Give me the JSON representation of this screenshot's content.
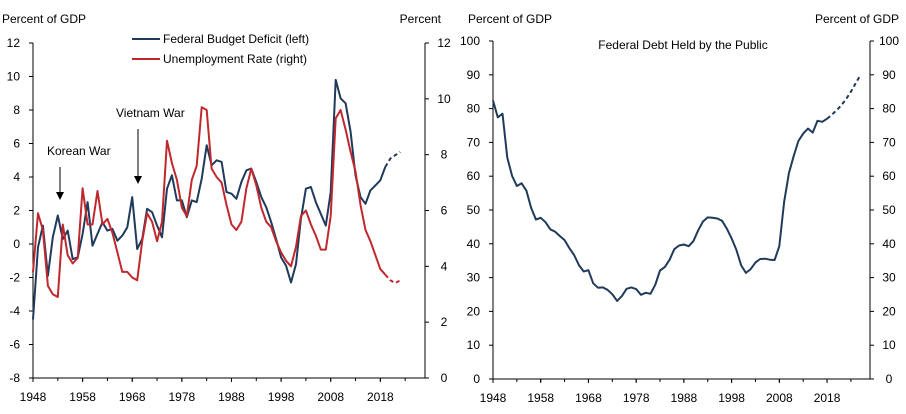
{
  "colors": {
    "deficit": "#1f3a5a",
    "unemployment": "#c0282d",
    "debt": "#1f3a5a",
    "axis": "#000000"
  },
  "chart_data": [
    {
      "type": "line",
      "title": "",
      "left_axis_title": "Percent of GDP",
      "right_axis_title": "Percent",
      "xlim": [
        1948,
        2027
      ],
      "ylim_left": [
        -8,
        12
      ],
      "ylim_right": [
        0,
        12
      ],
      "x_ticks": [
        "1948",
        "1958",
        "1968",
        "1978",
        "1988",
        "1998",
        "2008",
        "2018"
      ],
      "x_tick_values": [
        1948,
        1958,
        1968,
        1978,
        1988,
        1998,
        2008,
        2018
      ],
      "y_ticks_left": [
        "12",
        "10",
        "8",
        "6",
        "4",
        "2",
        "0",
        "-2",
        "-4",
        "-6",
        "-8"
      ],
      "y_tick_values_left": [
        12,
        10,
        8,
        6,
        4,
        2,
        0,
        -2,
        -4,
        -6,
        -8
      ],
      "y_ticks_right": [
        "12",
        "10",
        "8",
        "6",
        "4",
        "2",
        "0"
      ],
      "y_tick_values_right": [
        12,
        10,
        8,
        6,
        4,
        2,
        0
      ],
      "legend": [
        "Federal Budget Deficit (left)",
        "Unemployment Rate (right)"
      ],
      "annotations": [
        {
          "text": "Korean War",
          "x": 1953,
          "y": 1.7
        },
        {
          "text": "Vietnam War",
          "x": 1968,
          "y": 2.8
        }
      ],
      "series": [
        {
          "name": "Federal Budget Deficit (left)",
          "axis": "left",
          "x": [
            1948,
            1949,
            1950,
            1951,
            1952,
            1953,
            1954,
            1955,
            1956,
            1957,
            1958,
            1959,
            1960,
            1961,
            1962,
            1963,
            1964,
            1965,
            1966,
            1967,
            1968,
            1969,
            1970,
            1971,
            1972,
            1973,
            1974,
            1975,
            1976,
            1977,
            1978,
            1979,
            1980,
            1981,
            1982,
            1983,
            1984,
            1985,
            1986,
            1987,
            1988,
            1989,
            1990,
            1991,
            1992,
            1993,
            1994,
            1995,
            1996,
            1997,
            1998,
            1999,
            2000,
            2001,
            2002,
            2003,
            2004,
            2005,
            2006,
            2007,
            2008,
            2009,
            2010,
            2011,
            2012,
            2013,
            2014,
            2015,
            2016,
            2017,
            2018,
            2019
          ],
          "values": [
            -4.5,
            -0.2,
            1.1,
            -1.9,
            0.4,
            1.7,
            0.3,
            0.8,
            -0.9,
            -0.8,
            0.6,
            2.5,
            -0.1,
            0.6,
            1.3,
            0.8,
            0.9,
            0.2,
            0.5,
            1.0,
            2.8,
            -0.3,
            0.3,
            2.1,
            1.9,
            1.1,
            0.4,
            3.3,
            4.1,
            2.6,
            2.6,
            1.6,
            2.6,
            2.5,
            3.9,
            5.9,
            4.7,
            5.0,
            4.9,
            3.1,
            3.0,
            2.7,
            3.7,
            4.4,
            4.5,
            3.7,
            2.8,
            2.2,
            1.3,
            0.3,
            -0.8,
            -1.3,
            -2.3,
            -1.2,
            1.5,
            3.3,
            3.4,
            2.5,
            1.8,
            1.1,
            3.1,
            9.8,
            8.7,
            8.4,
            6.7,
            4.1,
            2.8,
            2.4,
            3.2,
            3.5,
            3.8,
            4.6
          ]
        },
        {
          "name": "Federal Budget Deficit (left) projection",
          "axis": "left",
          "style": "dashed",
          "x": [
            2019,
            2020,
            2021,
            2022
          ],
          "values": [
            4.6,
            5.1,
            5.3,
            5.5
          ]
        },
        {
          "name": "Unemployment Rate (right)",
          "axis": "right",
          "x": [
            1948,
            1949,
            1950,
            1951,
            1952,
            1953,
            1954,
            1955,
            1956,
            1957,
            1958,
            1959,
            1960,
            1961,
            1962,
            1963,
            1964,
            1965,
            1966,
            1967,
            1968,
            1969,
            1970,
            1971,
            1972,
            1973,
            1974,
            1975,
            1976,
            1977,
            1978,
            1979,
            1980,
            1981,
            1982,
            1983,
            1984,
            1985,
            1986,
            1987,
            1988,
            1989,
            1990,
            1991,
            1992,
            1993,
            1994,
            1995,
            1996,
            1997,
            1998,
            1999,
            2000,
            2001,
            2002,
            2003,
            2004,
            2005,
            2006,
            2007,
            2008,
            2009,
            2010,
            2011,
            2012,
            2013,
            2014,
            2015,
            2016,
            2017,
            2018,
            2019
          ],
          "values": [
            3.8,
            5.9,
            5.3,
            3.3,
            3.0,
            2.9,
            5.5,
            4.4,
            4.1,
            4.3,
            6.8,
            5.5,
            5.5,
            6.7,
            5.5,
            5.7,
            5.2,
            4.5,
            3.8,
            3.8,
            3.6,
            3.5,
            4.9,
            5.9,
            5.6,
            4.9,
            5.6,
            8.5,
            7.7,
            7.1,
            6.1,
            5.8,
            7.1,
            7.6,
            9.7,
            9.6,
            7.5,
            7.2,
            7.0,
            6.2,
            5.5,
            5.3,
            5.6,
            6.8,
            7.5,
            6.9,
            6.1,
            5.6,
            5.4,
            4.9,
            4.5,
            4.2,
            4.0,
            4.7,
            5.8,
            6.0,
            5.5,
            5.1,
            4.6,
            4.6,
            5.8,
            9.3,
            9.6,
            8.9,
            8.1,
            7.4,
            6.2,
            5.3,
            4.9,
            4.4,
            3.9,
            3.7
          ]
        },
        {
          "name": "Unemployment Rate (right) projection",
          "axis": "right",
          "style": "dashed",
          "x": [
            2019,
            2020,
            2021,
            2022
          ],
          "values": [
            3.7,
            3.5,
            3.4,
            3.5
          ]
        }
      ]
    },
    {
      "type": "line",
      "title": "Federal Debt Held by the Public",
      "left_axis_title": "Percent of GDP",
      "right_axis_title": "Percent of GDP",
      "xlim": [
        1948,
        2027
      ],
      "ylim_left": [
        0,
        100
      ],
      "ylim_right": [
        0,
        100
      ],
      "x_ticks": [
        "1948",
        "1958",
        "1968",
        "1978",
        "1988",
        "1998",
        "2008",
        "2018"
      ],
      "x_tick_values": [
        1948,
        1958,
        1968,
        1978,
        1988,
        1998,
        2008,
        2018
      ],
      "y_ticks_left": [
        "100",
        "90",
        "80",
        "70",
        "60",
        "50",
        "40",
        "30",
        "20",
        "10",
        "0"
      ],
      "y_tick_values_left": [
        100,
        90,
        80,
        70,
        60,
        50,
        40,
        30,
        20,
        10,
        0
      ],
      "y_ticks_right": [
        "100",
        "90",
        "80",
        "70",
        "60",
        "50",
        "40",
        "30",
        "20",
        "10",
        "0"
      ],
      "y_tick_values_right": [
        100,
        90,
        80,
        70,
        60,
        50,
        40,
        30,
        20,
        10,
        0
      ],
      "series": [
        {
          "name": "Federal Debt Held by the Public",
          "axis": "left",
          "x": [
            1948,
            1949,
            1950,
            1951,
            1952,
            1953,
            1954,
            1955,
            1956,
            1957,
            1958,
            1959,
            1960,
            1961,
            1962,
            1963,
            1964,
            1965,
            1966,
            1967,
            1968,
            1969,
            1970,
            1971,
            1972,
            1973,
            1974,
            1975,
            1976,
            1977,
            1978,
            1979,
            1980,
            1981,
            1982,
            1983,
            1984,
            1985,
            1986,
            1987,
            1988,
            1989,
            1990,
            1991,
            1992,
            1993,
            1994,
            1995,
            1996,
            1997,
            1998,
            1999,
            2000,
            2001,
            2002,
            2003,
            2004,
            2005,
            2006,
            2007,
            2008,
            2009,
            2010,
            2011,
            2012,
            2013,
            2014,
            2015,
            2016,
            2017,
            2018
          ],
          "values": [
            82.4,
            77.4,
            78.5,
            65.5,
            60.1,
            57.1,
            57.9,
            55.7,
            50.6,
            47.2,
            47.7,
            46.4,
            44.3,
            43.6,
            42.3,
            41.1,
            38.7,
            36.7,
            33.7,
            31.8,
            32.2,
            28.3,
            27.0,
            27.1,
            26.4,
            25.1,
            23.1,
            24.5,
            26.7,
            27.1,
            26.6,
            24.9,
            25.5,
            25.2,
            27.9,
            32.1,
            33.1,
            35.3,
            38.4,
            39.5,
            39.8,
            39.3,
            40.8,
            44.0,
            46.6,
            47.8,
            47.7,
            47.5,
            46.8,
            44.5,
            41.6,
            38.2,
            33.6,
            31.4,
            32.5,
            34.5,
            35.5,
            35.6,
            35.3,
            35.2,
            39.3,
            52.3,
            60.9,
            65.9,
            70.4,
            72.6,
            74.1,
            72.9,
            76.4,
            76.1,
            77.0
          ]
        },
        {
          "name": "Federal Debt Held by the Public projection",
          "axis": "left",
          "style": "dashed",
          "x": [
            2018,
            2019,
            2020,
            2021,
            2022,
            2023,
            2024,
            2025
          ],
          "values": [
            77.0,
            78.2,
            79.5,
            81.0,
            82.8,
            85.0,
            87.5,
            90.0
          ]
        }
      ]
    }
  ]
}
